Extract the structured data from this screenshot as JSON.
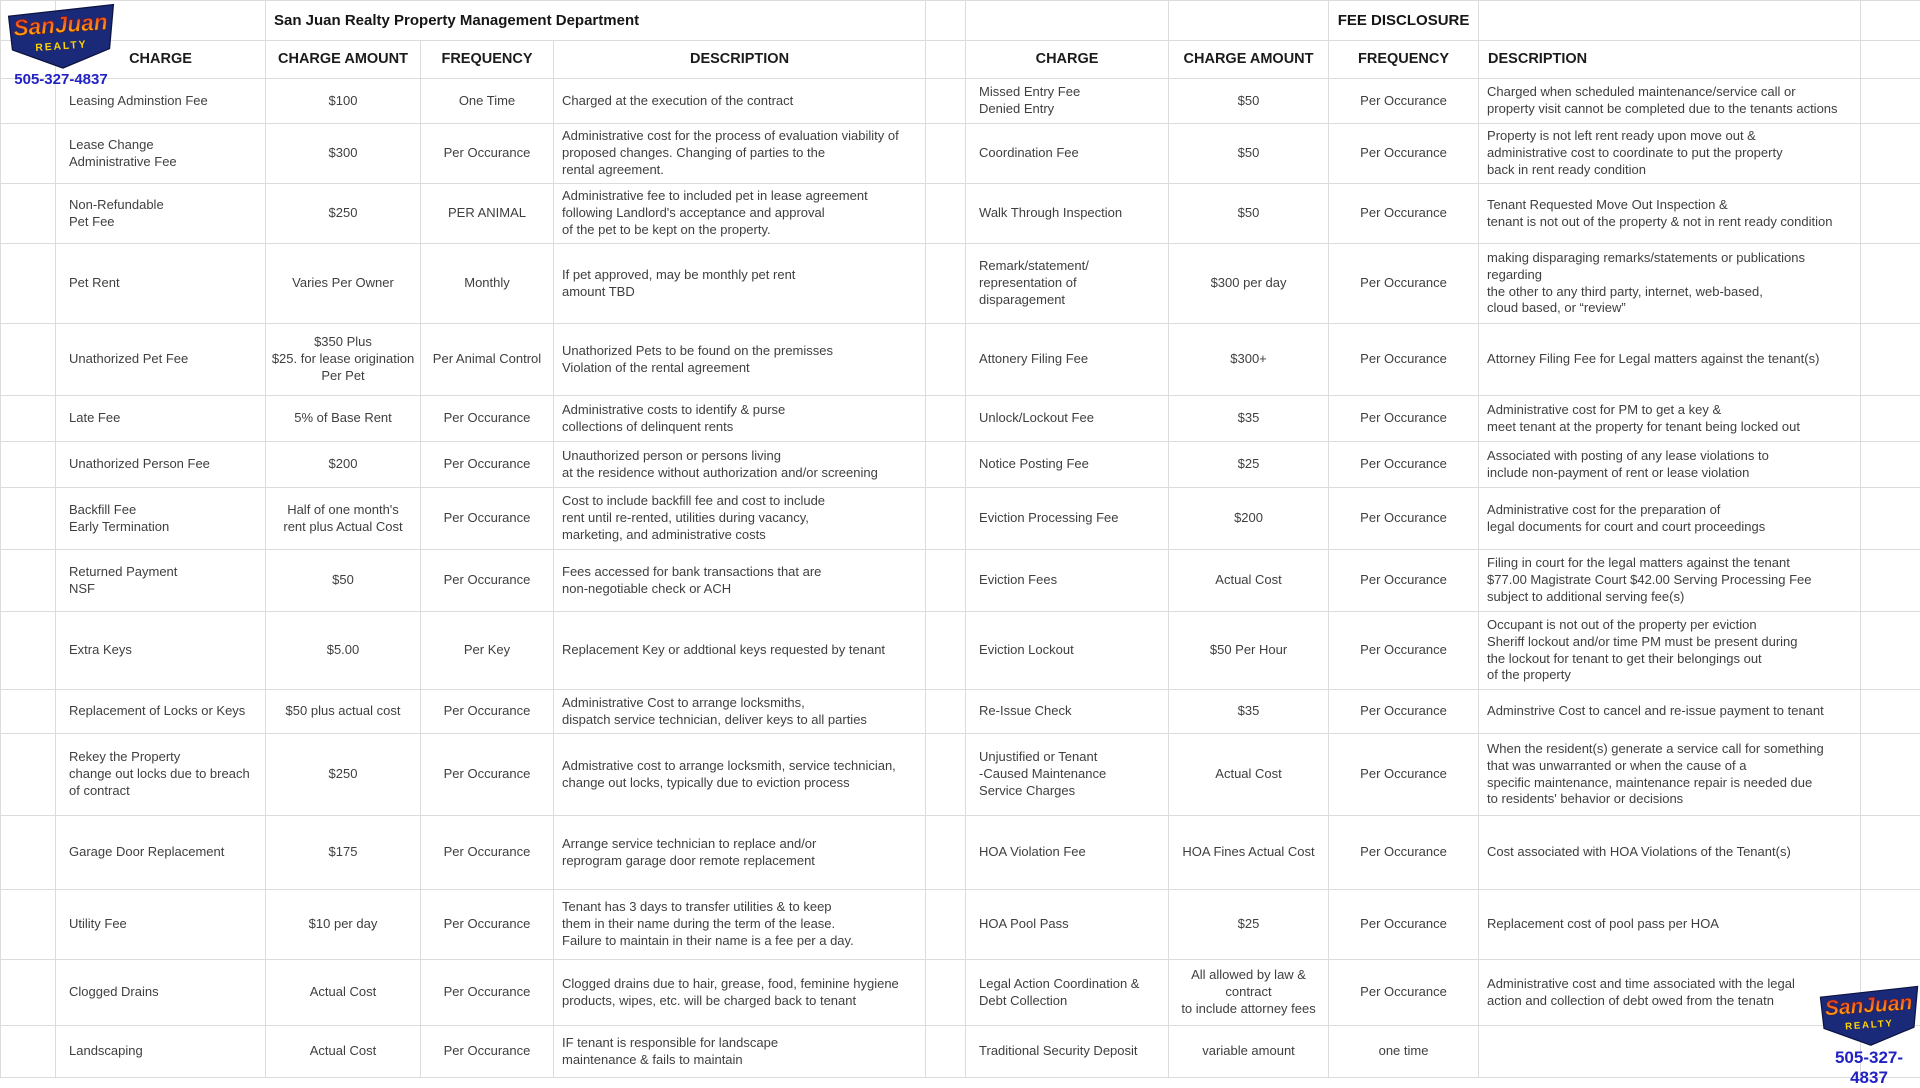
{
  "brand": {
    "logo_line1": "SanJuan",
    "logo_line2": "REALTY",
    "phone": "505-327-4837"
  },
  "left_table": {
    "title": "San Juan Realty Property Management Department",
    "headers": {
      "charge": "CHARGE",
      "amount": "CHARGE AMOUNT",
      "frequency": "FREQUENCY",
      "description": "DESCRIPTION"
    },
    "rows": [
      {
        "charge": "Leasing Adminstion Fee",
        "amount": "$100",
        "frequency": "One Time",
        "description": "Charged at the execution of the contract"
      },
      {
        "charge": "Lease Change\nAdministrative Fee",
        "amount": "$300",
        "frequency": "Per Occurance",
        "description": "Administrative cost for the process of evaluation viability of\nproposed changes. Changing of parties to the\nrental agreement."
      },
      {
        "charge": "Non-Refundable\nPet Fee",
        "amount": "$250",
        "frequency": "PER ANIMAL",
        "description": "Administrative fee to included pet in lease agreement\nfollowing Landlord's acceptance and approval\nof the pet to be kept on the property."
      },
      {
        "charge": "Pet Rent",
        "amount": "Varies Per Owner",
        "frequency": "Monthly",
        "description": "If pet approved, may be monthly pet rent\namount TBD"
      },
      {
        "charge": "Unathorized Pet Fee",
        "amount": "$350 Plus\n$25. for lease origination\nPer Pet",
        "frequency": "Per Animal Control",
        "description": "Unathorized Pets to be found on the premisses\nViolation of the rental agreement"
      },
      {
        "charge": "Late Fee",
        "amount": "5% of Base Rent",
        "frequency": "Per Occurance",
        "description": "Administrative costs to identify & purse\ncollections of delinquent rents"
      },
      {
        "charge": "Unathorized Person Fee",
        "amount": "$200",
        "frequency": "Per Occurance",
        "description": "Unauthorized person or persons living\nat the residence without authorization and/or screening"
      },
      {
        "charge": "Backfill Fee\nEarly Termination",
        "amount": "Half of one month's\nrent plus Actual Cost",
        "frequency": "Per Occurance",
        "description": "Cost to include backfill fee and cost to include\nrent until re-rented, utilities during vacancy,\nmarketing, and administrative costs"
      },
      {
        "charge": "Returned Payment\nNSF",
        "amount": "$50",
        "frequency": "Per Occurance",
        "description": "Fees accessed for bank transactions that are\nnon-negotiable check or ACH"
      },
      {
        "charge": "Extra Keys",
        "amount": "$5.00",
        "frequency": "Per Key",
        "description": "Replacement Key or addtional keys requested by tenant"
      },
      {
        "charge": "Replacement of Locks or Keys",
        "amount": "$50 plus actual cost",
        "frequency": "Per Occurance",
        "description": "Administrative Cost to arrange locksmiths,\ndispatch service technician, deliver keys to all parties"
      },
      {
        "charge": "Rekey the Property\nchange out locks due to breach\nof contract",
        "amount": "$250",
        "frequency": "Per Occurance",
        "description": "Admistrative cost to arrange locksmith, service technician,\nchange out locks, typically due to eviction process"
      },
      {
        "charge": "Garage Door Replacement",
        "amount": "$175",
        "frequency": "Per Occurance",
        "description": "Arrange service technician to replace and/or\nreprogram garage door remote replacement"
      },
      {
        "charge": "Utility Fee",
        "amount": "$10 per day",
        "frequency": "Per Occurance",
        "description": "Tenant has 3 days to transfer utilities & to keep\nthem in their name during the term of the lease.\nFailure to maintain in their name is a fee per a day."
      },
      {
        "charge": "Clogged Drains",
        "amount": "Actual Cost",
        "frequency": "Per Occurance",
        "description": "Clogged drains due to hair, grease, food, feminine hygiene\nproducts, wipes,  etc.  will be charged back to tenant"
      },
      {
        "charge": "Landscaping",
        "amount": "Actual Cost",
        "frequency": "Per Occurance",
        "description": "IF tenant is responsible for landscape\nmaintenance & fails to maintain"
      }
    ]
  },
  "right_table": {
    "title": "FEE DISCLOSURE",
    "headers": {
      "charge": "CHARGE",
      "amount": "CHARGE AMOUNT",
      "frequency": "FREQUENCY",
      "description": "DESCRIPTION"
    },
    "rows": [
      {
        "charge": "Missed Entry Fee\nDenied Entry",
        "amount": "$50",
        "frequency": "Per Occurance",
        "description": "Charged when scheduled maintenance/service call or\nproperty visit cannot be completed due to the tenants actions"
      },
      {
        "charge": "Coordination Fee",
        "amount": "$50",
        "frequency": "Per Occurance",
        "description": "Property is not left rent ready upon move out &\nadministrative cost to coordinate to put the property\nback in rent ready condition"
      },
      {
        "charge": "Walk Through Inspection",
        "amount": "$50",
        "frequency": "Per Occurance",
        "description": "Tenant Requested Move Out Inspection &\ntenant is not out of the property & not in rent ready condition"
      },
      {
        "charge": "Remark/statement/\nrepresentation of\ndisparagement",
        "amount": "$300 per day",
        "frequency": "Per Occurance",
        "description": "making disparaging remarks/statements or publications regarding\nthe other to any third party, internet, web-based,\ncloud based, or “review”"
      },
      {
        "charge": "Attonery Filing Fee",
        "amount": "$300+",
        "frequency": "Per Occurance",
        "description": "Attorney Filing Fee for Legal matters against the tenant(s)"
      },
      {
        "charge": "Unlock/Lockout Fee",
        "amount": "$35",
        "frequency": "Per Occurance",
        "description": "Administrative cost for PM to get a key &\nmeet tenant at the property for tenant being locked out"
      },
      {
        "charge": "Notice Posting Fee",
        "amount": "$25",
        "frequency": "Per Occurance",
        "description": "Associated with posting of any lease violations to\ninclude non-payment of rent or lease violation"
      },
      {
        "charge": "Eviction Processing Fee",
        "amount": "$200",
        "frequency": "Per Occurance",
        "description": "Administrative cost for the preparation of\nlegal documents for court and court proceedings"
      },
      {
        "charge": "Eviction Fees",
        "amount": "Actual Cost",
        "frequency": "Per Occurance",
        "description": "Filing in court for the legal matters against the tenant\n$77.00 Magistrate Court $42.00 Serving Processing Fee\nsubject to additional serving fee(s)"
      },
      {
        "charge": "Eviction Lockout",
        "amount": "$50 Per Hour",
        "frequency": "Per Occurance",
        "description": "Occupant is not out of the property per eviction\nSheriff lockout and/or time PM must be present during\nthe lockout for tenant to get their belongings out\nof the property"
      },
      {
        "charge": "Re-Issue Check",
        "amount": "$35",
        "frequency": "Per Occurance",
        "description": "Adminstrive Cost to cancel and re-issue payment to tenant"
      },
      {
        "charge": "Unjustified or Tenant\n-Caused Maintenance\nService Charges",
        "amount": "Actual Cost",
        "frequency": "Per Occurance",
        "description": "When the resident(s) generate a service call for something\nthat was unwarranted or when the cause of a\nspecific maintenance, maintenance repair is needed due\nto residents' behavior or decisions"
      },
      {
        "charge": "HOA Violation Fee",
        "amount": "HOA Fines Actual Cost",
        "frequency": "Per Occurance",
        "description": "Cost associated with HOA Violations of the Tenant(s)"
      },
      {
        "charge": "HOA Pool Pass",
        "amount": "$25",
        "frequency": "Per Occurance",
        "description": "Replacement cost of pool pass per HOA"
      },
      {
        "charge": "Legal Action Coordination &\nDebt Collection",
        "amount": "All allowed by law &\ncontract\nto include attorney fees",
        "frequency": "Per Occurance",
        "description": "Administrative cost and time associated with the legal\naction and collection of debt owed from the tenatn"
      },
      {
        "charge": "Traditional Security Deposit",
        "amount": "variable amount",
        "frequency": "one time",
        "description": ""
      }
    ]
  }
}
